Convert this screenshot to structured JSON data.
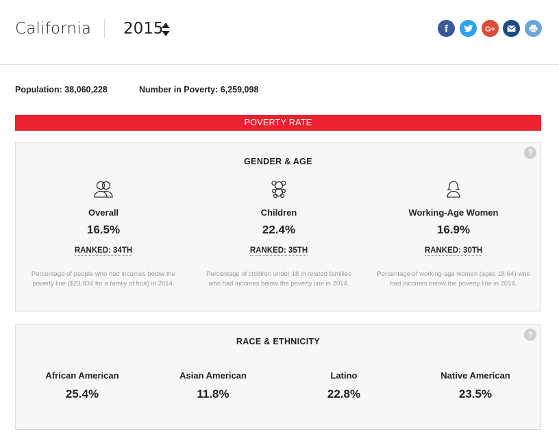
{
  "header": {
    "state": "California",
    "year": "2015"
  },
  "share": [
    {
      "name": "facebook-icon",
      "color": "#3b5998",
      "glyph": "f"
    },
    {
      "name": "twitter-icon",
      "color": "#2aa3ef",
      "glyph": "t"
    },
    {
      "name": "google-plus-icon",
      "color": "#dd4b39",
      "glyph": "G+"
    },
    {
      "name": "email-icon",
      "color": "#1d4a80",
      "glyph": "mail"
    },
    {
      "name": "print-icon",
      "color": "#6aa6d6",
      "glyph": "print"
    }
  ],
  "stats": {
    "population_label": "Population:",
    "population": "38,060,228",
    "poverty_label": "Number in Poverty:",
    "poverty": "6,259,098"
  },
  "poverty_rate_label": "POVERTY RATE",
  "gender_age": {
    "title": "GENDER & AGE",
    "help": "?",
    "items": [
      {
        "name": "Overall",
        "value": "16.5%",
        "rank": "RANKED: 34TH",
        "desc": "Percentage of people who had incomes below the poverty line ($23,834 for a family of four) in 2014."
      },
      {
        "name": "Children",
        "value": "22.4%",
        "rank": "RANKED: 35TH",
        "desc": "Percentage of children under 18 in related families who had incomes below the poverty line in 2014."
      },
      {
        "name": "Working-Age Women",
        "value": "16.9%",
        "rank": "RANKED: 30TH",
        "desc": "Percentage of working-age women (ages 18-64) who had incomes below the poverty line in 2014."
      }
    ]
  },
  "race_ethnicity": {
    "title": "RACE & ETHNICITY",
    "help": "?",
    "items": [
      {
        "name": "African American",
        "value": "25.4%"
      },
      {
        "name": "Asian American",
        "value": "11.8%"
      },
      {
        "name": "Latino",
        "value": "22.8%"
      },
      {
        "name": "Native American",
        "value": "23.5%"
      }
    ]
  },
  "colors": {
    "accent_red": "#ee2130",
    "panel_bg": "#f7f7f7"
  }
}
